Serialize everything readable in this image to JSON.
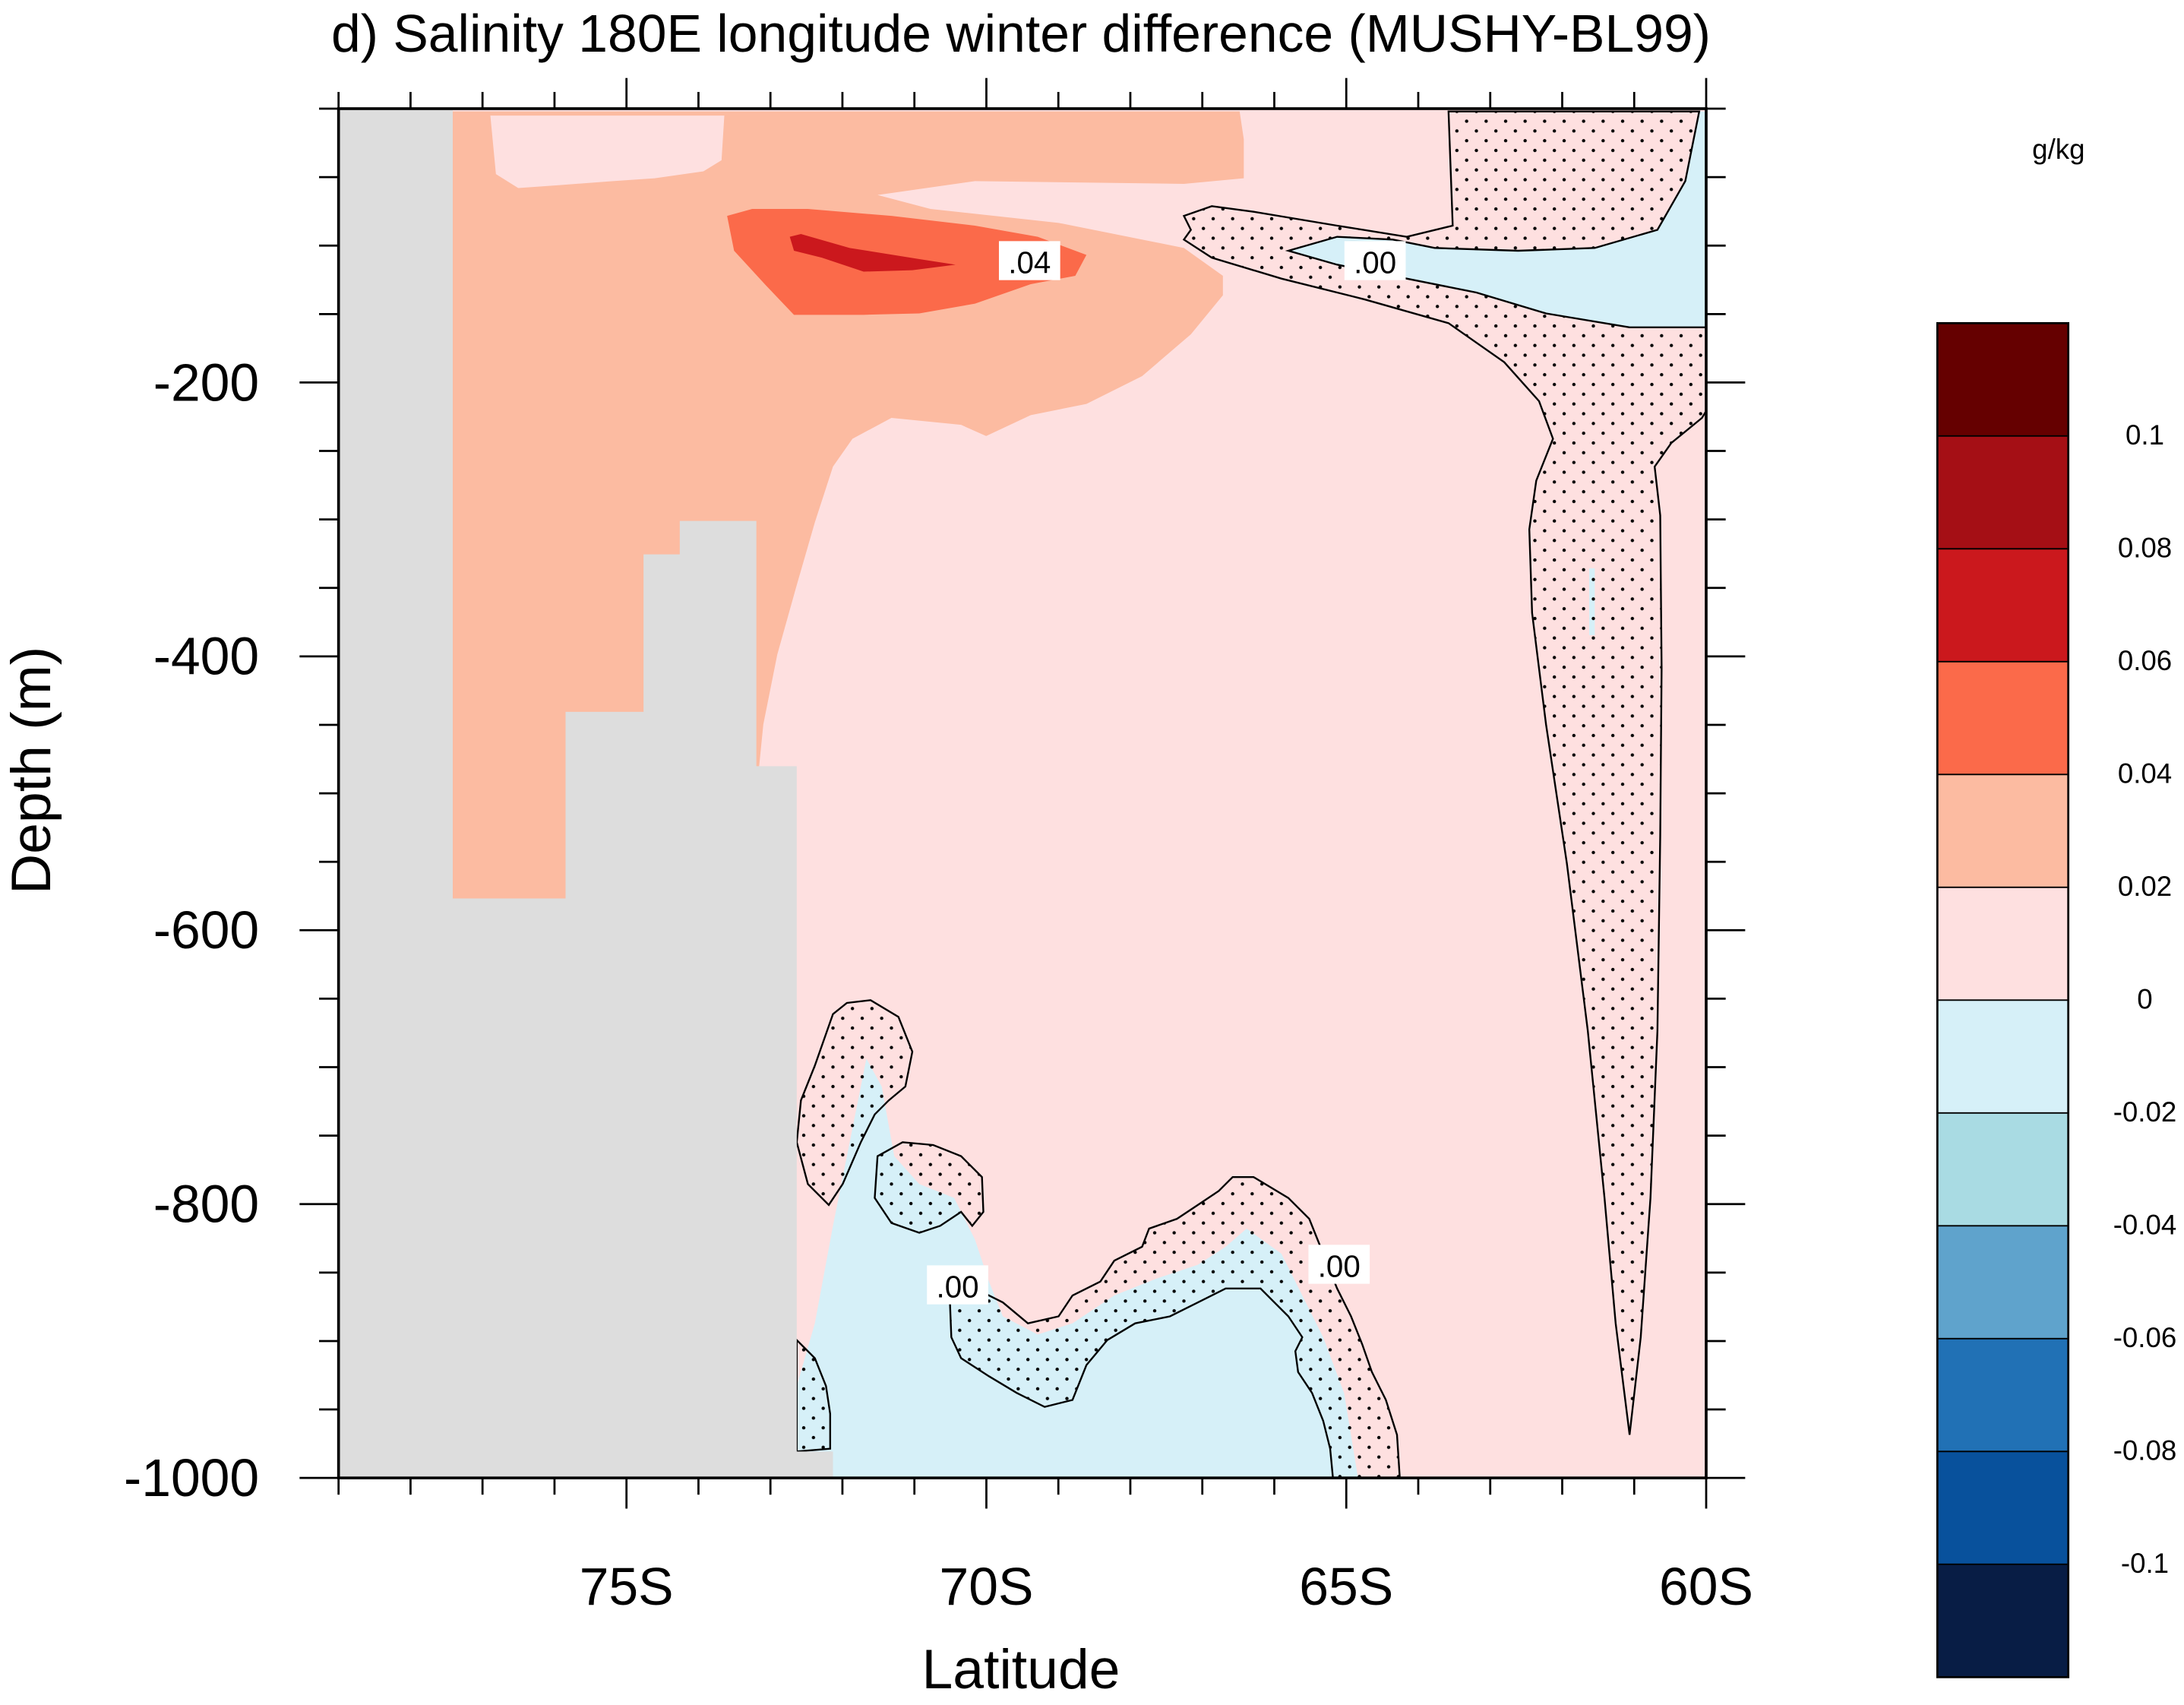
{
  "chart_data": {
    "type": "heatmap",
    "title": "d) Salinity 180E longitude winter difference (MUSHY-BL99)",
    "xlabel": "Latitude",
    "ylabel": "Depth (m)",
    "xlim": [
      -79,
      -60
    ],
    "ylim": [
      -1000,
      0
    ],
    "x_ticks": [
      {
        "value": -75,
        "label": "75S"
      },
      {
        "value": -70,
        "label": "70S"
      },
      {
        "value": -65,
        "label": "65S"
      },
      {
        "value": -60,
        "label": "60S"
      }
    ],
    "y_ticks": [
      {
        "value": -200,
        "label": "-200"
      },
      {
        "value": -400,
        "label": "-400"
      },
      {
        "value": -600,
        "label": "-600"
      },
      {
        "value": -800,
        "label": "-800"
      },
      {
        "value": -1000,
        "label": "-1000"
      }
    ],
    "colorbar": {
      "units": "g/kg",
      "levels": [
        {
          "value": 0.1,
          "label": "0.1"
        },
        {
          "value": 0.08,
          "label": "0.08"
        },
        {
          "value": 0.06,
          "label": "0.06"
        },
        {
          "value": 0.04,
          "label": "0.04"
        },
        {
          "value": 0.02,
          "label": "0.02"
        },
        {
          "value": 0,
          "label": "0"
        },
        {
          "value": -0.02,
          "label": "-0.02"
        },
        {
          "value": -0.04,
          "label": "-0.04"
        },
        {
          "value": -0.06,
          "label": "-0.06"
        },
        {
          "value": -0.08,
          "label": "-0.08"
        },
        {
          "value": -0.1,
          "label": "-0.1"
        }
      ],
      "colors": [
        "#650000",
        "#a50f15",
        "#cb181d",
        "#fb6a4a",
        "#fcbba1",
        "#fee0e0",
        "#d6f0f8",
        "#a9dbe3",
        "#5fa3cc",
        "#2171b5",
        "#08519c",
        "#081d45"
      ]
    },
    "land_color": "#dddddd",
    "contour_labels": [
      {
        "text": ".04",
        "lat": -69.4,
        "depth": -112
      },
      {
        "text": ".00",
        "lat": -64.6,
        "depth": -112
      },
      {
        "text": ".00",
        "lat": -70.4,
        "depth": -860
      },
      {
        "text": ".00",
        "lat": -65.1,
        "depth": -845
      }
    ],
    "regions": [
      {
        "name": "positive 0.00-0.02",
        "value": 0.01,
        "color": "#fee0e0"
      },
      {
        "name": "positive 0.02-0.04",
        "value": 0.03,
        "color": "#fcbba1"
      },
      {
        "name": "positive 0.04-0.06",
        "value": 0.05,
        "color": "#fb6a4a"
      },
      {
        "name": "positive 0.06-0.08",
        "value": 0.07,
        "color": "#cb181d"
      },
      {
        "name": "negative -0.02-0.00",
        "value": -0.01,
        "color": "#d6f0f8"
      }
    ],
    "stippling": "areas with dots are not significant"
  }
}
